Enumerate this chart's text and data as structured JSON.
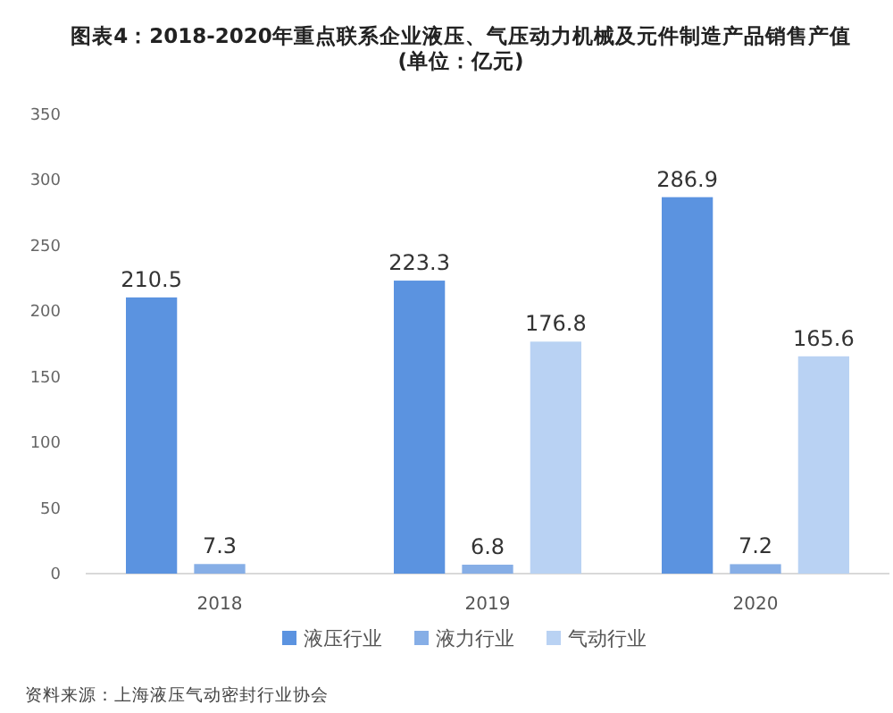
{
  "chart_data": {
    "type": "bar",
    "title": "图表4：2018-2020年重点联系企业液压、气压动力机械及元件制造产品销售产值",
    "subtitle": "(单位：亿元)",
    "categories": [
      "2018",
      "2019",
      "2020"
    ],
    "series": [
      {
        "name": "液压行业",
        "color": "#5b93e0",
        "values": [
          210.5,
          223.3,
          286.9
        ]
      },
      {
        "name": "液力行业",
        "color": "#86aee6",
        "values": [
          7.3,
          6.8,
          7.2
        ]
      },
      {
        "name": "气动行业",
        "color": "#b9d2f3",
        "values": [
          null,
          176.8,
          165.6
        ]
      }
    ],
    "ylim": [
      0,
      350
    ],
    "yticks": [
      0,
      50,
      100,
      150,
      200,
      250,
      300,
      350
    ],
    "data_labels": true,
    "legend": "bottom",
    "grid": false,
    "annotations": [
      "资料来源：上海液压气动密封行业协会"
    ]
  }
}
